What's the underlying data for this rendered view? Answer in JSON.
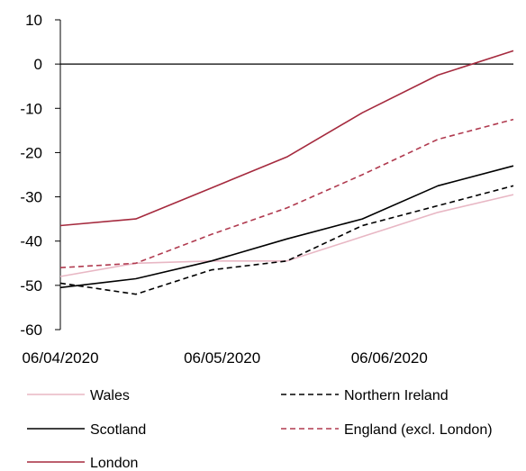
{
  "chart_data": {
    "type": "line",
    "title": "",
    "xlabel": "",
    "ylabel": "",
    "ylim": [
      -60,
      10
    ],
    "yticks": [
      10,
      0,
      -10,
      -20,
      -30,
      -40,
      -50,
      -60
    ],
    "x": [
      "2020-04-06",
      "2020-04-20",
      "2020-05-04",
      "2020-05-18",
      "2020-06-01",
      "2020-06-15",
      "2020-06-29"
    ],
    "xtick_labels": [
      "06/04/2020",
      "06/05/2020",
      "06/06/2020"
    ],
    "xtick_dates": [
      "2020-04-06",
      "2020-05-06",
      "2020-06-06"
    ],
    "grid": false,
    "legend_position": "bottom",
    "series": [
      {
        "name": "Wales",
        "color": "#e8b7c4",
        "dash": "solid",
        "values": [
          -48,
          -45,
          -44.5,
          -44.5,
          -39,
          -33.5,
          -29.5
        ]
      },
      {
        "name": "Northern Ireland",
        "color": "#000000",
        "dash": "dashed",
        "values": [
          -49.5,
          -52,
          -46.5,
          -44.5,
          -36.5,
          -32,
          -27.5
        ]
      },
      {
        "name": "Scotland",
        "color": "#000000",
        "dash": "solid",
        "values": [
          -50.5,
          -48.5,
          -44.5,
          -39.5,
          -35,
          -27.5,
          -23
        ]
      },
      {
        "name": "England (excl. London)",
        "color": "#b03a4f",
        "dash": "dashed",
        "values": [
          -46,
          -45,
          -38.5,
          -32.5,
          -25,
          -17,
          -12.5
        ]
      },
      {
        "name": "London",
        "color": "#a52a3e",
        "dash": "solid",
        "values": [
          -36.5,
          -35,
          -28,
          -21,
          -11,
          -2.5,
          3
        ]
      }
    ]
  }
}
